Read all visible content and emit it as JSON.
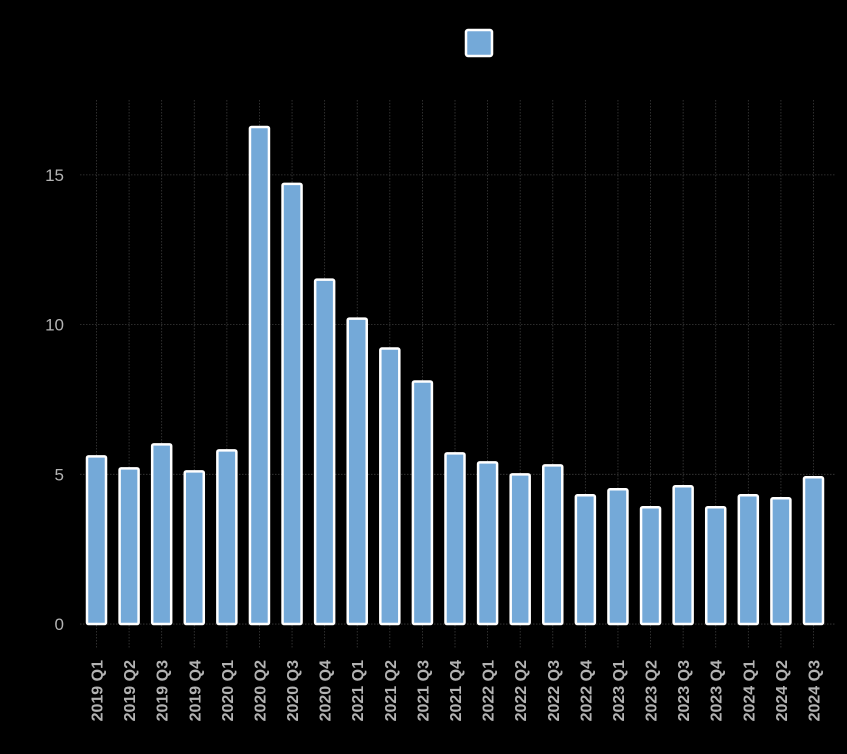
{
  "chart_data": {
    "type": "bar",
    "title": "",
    "xlabel": "",
    "ylabel": "",
    "categories": [
      "2019 Q1",
      "2019 Q2",
      "2019 Q3",
      "2019 Q4",
      "2020 Q1",
      "2020 Q2",
      "2020 Q3",
      "2020 Q4",
      "2021 Q1",
      "2021 Q2",
      "2021 Q3",
      "2021 Q4",
      "2022 Q1",
      "2022 Q2",
      "2022 Q3",
      "2022 Q4",
      "2023 Q1",
      "2023 Q2",
      "2023 Q3",
      "2023 Q4",
      "2024 Q1",
      "2024 Q2",
      "2024 Q3"
    ],
    "series": [
      {
        "values": [
          5.6,
          5.2,
          6.0,
          5.1,
          5.8,
          16.6,
          14.7,
          11.5,
          10.2,
          9.2,
          8.1,
          5.7,
          5.4,
          5.0,
          5.3,
          4.3,
          4.5,
          3.9,
          4.6,
          3.9,
          4.3,
          4.2,
          4.9
        ],
        "color": "#74a9d8"
      }
    ],
    "ylim": [
      -0.8,
      17.5
    ],
    "yticks": [
      0,
      5,
      10,
      15
    ],
    "grid": true,
    "legend": {
      "position": "top-center"
    },
    "colors": {
      "background": "#000000",
      "bar_fill": "#74a9d8",
      "bar_stroke": "#ffffff",
      "grid": "#3a3a3a",
      "tick_text": "#b3b3b3"
    }
  }
}
